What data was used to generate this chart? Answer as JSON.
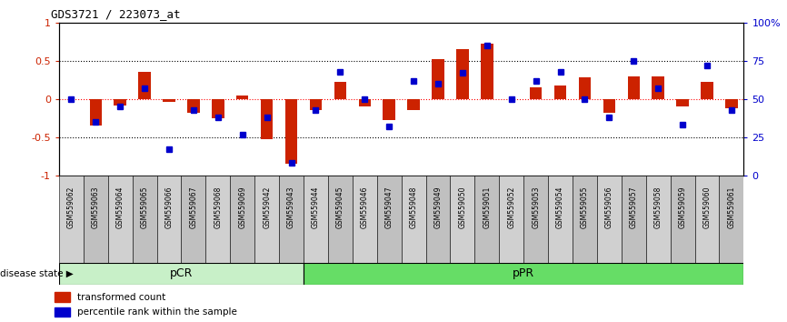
{
  "title": "GDS3721 / 223073_at",
  "samples": [
    "GSM559062",
    "GSM559063",
    "GSM559064",
    "GSM559065",
    "GSM559066",
    "GSM559067",
    "GSM559068",
    "GSM559069",
    "GSM559042",
    "GSM559043",
    "GSM559044",
    "GSM559045",
    "GSM559046",
    "GSM559047",
    "GSM559048",
    "GSM559049",
    "GSM559050",
    "GSM559051",
    "GSM559052",
    "GSM559053",
    "GSM559054",
    "GSM559055",
    "GSM559056",
    "GSM559057",
    "GSM559058",
    "GSM559059",
    "GSM559060",
    "GSM559061"
  ],
  "transformed_count": [
    0.0,
    -0.35,
    -0.08,
    0.35,
    -0.04,
    -0.18,
    -0.25,
    0.05,
    -0.52,
    -0.85,
    -0.14,
    0.22,
    -0.1,
    -0.28,
    -0.15,
    0.52,
    0.65,
    0.72,
    0.0,
    0.15,
    0.18,
    0.28,
    -0.18,
    0.3,
    0.3,
    -0.1,
    0.22,
    -0.12
  ],
  "percentile_rank": [
    0.5,
    0.35,
    0.45,
    0.57,
    0.17,
    0.43,
    0.38,
    0.27,
    0.38,
    0.08,
    0.43,
    0.68,
    0.5,
    0.32,
    0.62,
    0.6,
    0.67,
    0.85,
    0.5,
    0.62,
    0.68,
    0.5,
    0.38,
    0.75,
    0.57,
    0.33,
    0.72,
    0.43
  ],
  "pCR_count": 10,
  "pPR_count": 18,
  "bar_color": "#cc2200",
  "dot_color": "#0000cc",
  "pCR_color": "#c8f0c8",
  "pPR_color": "#66dd66",
  "bg_color": "#ffffff",
  "ylim": [
    -1.0,
    1.0
  ],
  "right_axis_color": "#0000cc",
  "label_color_left": "#cc2200",
  "tick_label_bg": "#c8c8c8"
}
